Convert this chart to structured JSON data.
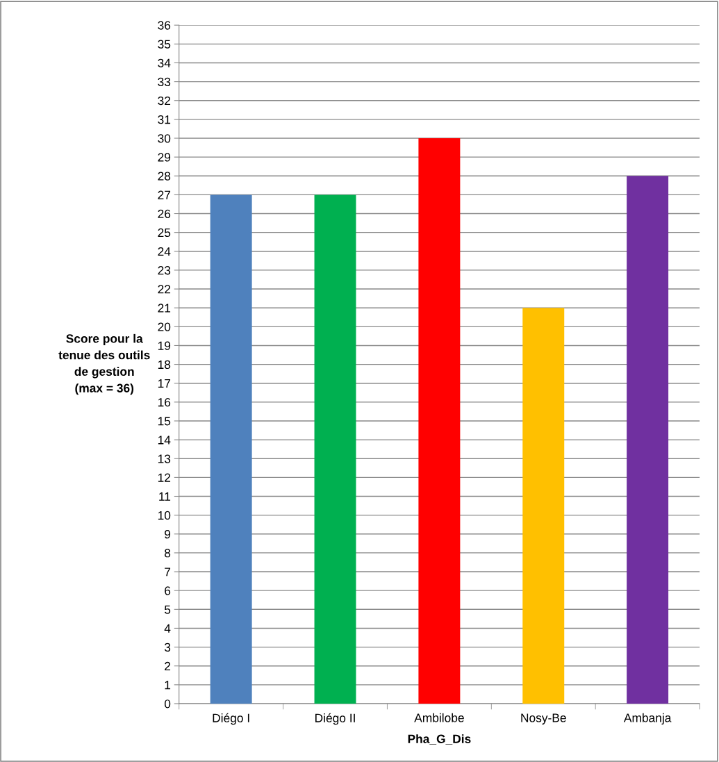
{
  "chart_data": {
    "type": "bar",
    "xlabel": "Pha_G_Dis",
    "ylabel": "Score pour la\ntenue des outils\nde gestion\n(max = 36)",
    "categories": [
      "Diégo I",
      "Diégo II",
      "Ambilobe",
      "Nosy-Be",
      "Ambanja"
    ],
    "values": [
      27,
      27,
      30,
      21,
      28
    ],
    "colors": [
      "#4f81bd",
      "#00b050",
      "#ff0000",
      "#ffc000",
      "#7030a0"
    ],
    "ylim": [
      0,
      36
    ],
    "yticks": [
      0,
      1,
      2,
      3,
      4,
      5,
      6,
      7,
      8,
      9,
      10,
      11,
      12,
      13,
      14,
      15,
      16,
      17,
      18,
      19,
      20,
      21,
      22,
      23,
      24,
      25,
      26,
      27,
      28,
      29,
      30,
      31,
      32,
      33,
      34,
      35,
      36
    ],
    "grid": "y",
    "legend": false
  }
}
